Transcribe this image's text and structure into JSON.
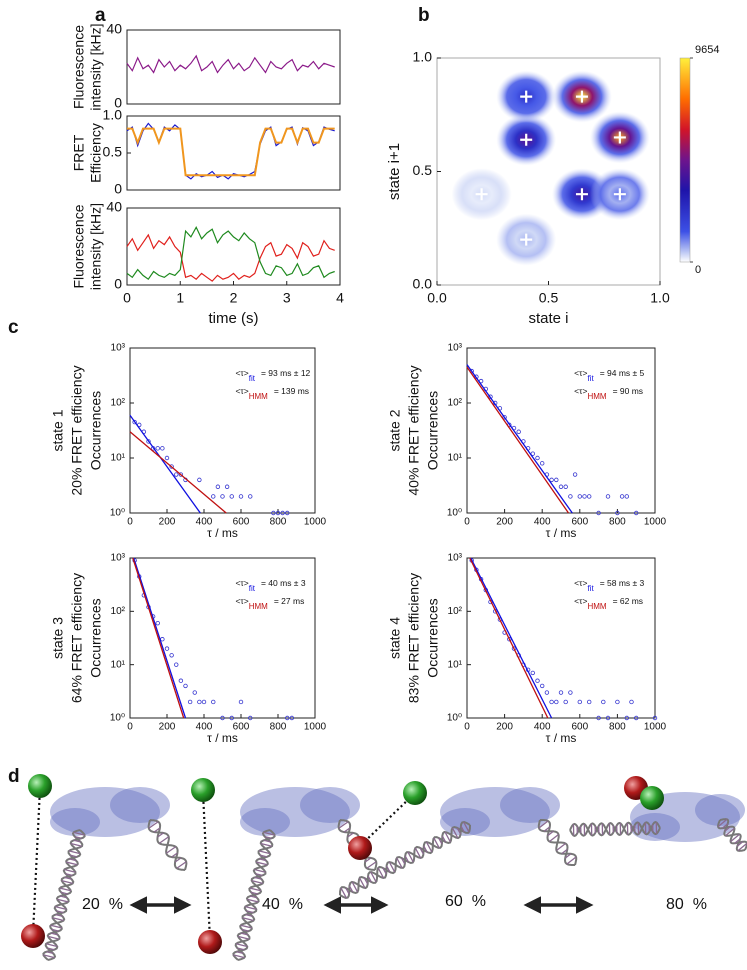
{
  "panels": [
    "a",
    "b",
    "c",
    "d"
  ],
  "chart_data": [
    {
      "type": "line",
      "ylabel": [
        "Fluorescence",
        "intensity [kHz]"
      ],
      "xlim": [
        0,
        4
      ],
      "ylim": [
        0,
        40
      ],
      "yticks": [
        0,
        40
      ],
      "x": [
        0,
        0.1,
        0.2,
        0.3,
        0.4,
        0.5,
        0.6,
        0.7,
        0.8,
        0.9,
        1.0,
        1.1,
        1.2,
        1.3,
        1.4,
        1.5,
        1.6,
        1.7,
        1.8,
        1.9,
        2.0,
        2.1,
        2.2,
        2.3,
        2.4,
        2.5,
        2.6,
        2.7,
        2.8,
        2.9,
        3.0,
        3.1,
        3.2,
        3.3,
        3.4,
        3.5,
        3.6,
        3.7,
        3.8,
        3.9
      ],
      "series": [
        {
          "color": "#8b1a89",
          "values": [
            22,
            18,
            25,
            19,
            21,
            17,
            24,
            20,
            23,
            18,
            21,
            19,
            22,
            26,
            18,
            20,
            23,
            17,
            21,
            24,
            19,
            22,
            18,
            20,
            25,
            21,
            17,
            23,
            20,
            19,
            22,
            24,
            18,
            21,
            20,
            23,
            19,
            22,
            21,
            20
          ]
        }
      ]
    },
    {
      "type": "line",
      "ylabel": [
        "FRET",
        "Efficiency"
      ],
      "xlim": [
        0,
        4
      ],
      "ylim": [
        0,
        1
      ],
      "yticks": [
        0,
        0.5,
        {
          "value": 1,
          "label": "1.0"
        }
      ],
      "x": [
        0,
        0.1,
        0.2,
        0.3,
        0.4,
        0.5,
        0.6,
        0.7,
        0.8,
        0.9,
        1.0,
        1.1,
        1.2,
        1.3,
        1.4,
        1.5,
        1.6,
        1.7,
        1.8,
        1.9,
        2.0,
        2.1,
        2.2,
        2.3,
        2.4,
        2.5,
        2.6,
        2.7,
        2.8,
        2.9,
        3.0,
        3.1,
        3.2,
        3.3,
        3.4,
        3.5,
        3.6,
        3.7,
        3.8,
        3.9
      ],
      "series": [
        {
          "color": "#1a1ad0",
          "values": [
            0.8,
            0.85,
            0.6,
            0.8,
            0.9,
            0.82,
            0.65,
            0.85,
            0.8,
            0.88,
            0.82,
            0.2,
            0.15,
            0.22,
            0.18,
            0.2,
            0.25,
            0.17,
            0.2,
            0.15,
            0.22,
            0.2,
            0.18,
            0.21,
            0.25,
            0.62,
            0.8,
            0.85,
            0.6,
            0.65,
            0.82,
            0.85,
            0.62,
            0.84,
            0.8,
            0.6,
            0.65,
            0.85,
            0.82,
            0.8
          ]
        },
        {
          "color": "#f0961e",
          "values": [
            0.83,
            0.83,
            0.64,
            0.83,
            0.83,
            0.83,
            0.64,
            0.83,
            0.83,
            0.83,
            0.83,
            0.2,
            0.2,
            0.2,
            0.2,
            0.2,
            0.2,
            0.2,
            0.2,
            0.2,
            0.2,
            0.2,
            0.2,
            0.2,
            0.2,
            0.64,
            0.83,
            0.83,
            0.64,
            0.64,
            0.83,
            0.83,
            0.64,
            0.83,
            0.83,
            0.64,
            0.64,
            0.83,
            0.83,
            0.83
          ]
        }
      ]
    },
    {
      "type": "line",
      "ylabel": [
        "Fluorescence",
        "intensity [kHz]"
      ],
      "xlabel": "time (s)",
      "xlim": [
        0,
        4
      ],
      "ylim": [
        0,
        40
      ],
      "yticks": [
        0,
        40
      ],
      "xticks": [
        0,
        1,
        2,
        3,
        4
      ],
      "x": [
        0,
        0.1,
        0.2,
        0.3,
        0.4,
        0.5,
        0.6,
        0.7,
        0.8,
        0.9,
        1.0,
        1.1,
        1.2,
        1.3,
        1.4,
        1.5,
        1.6,
        1.7,
        1.8,
        1.9,
        2.0,
        2.1,
        2.2,
        2.3,
        2.4,
        2.5,
        2.6,
        2.7,
        2.8,
        2.9,
        3.0,
        3.1,
        3.2,
        3.3,
        3.4,
        3.5,
        3.6,
        3.7,
        3.8,
        3.9
      ],
      "series": [
        {
          "color": "#e0201c",
          "values": [
            20,
            24,
            18,
            22,
            26,
            19,
            23,
            21,
            25,
            20,
            17,
            4,
            5,
            3,
            6,
            4,
            2,
            5,
            3,
            4,
            6,
            3,
            5,
            4,
            6,
            14,
            20,
            22,
            15,
            16,
            21,
            19,
            14,
            22,
            20,
            15,
            16,
            23,
            19,
            18
          ]
        },
        {
          "color": "#1f8a1f",
          "values": [
            6,
            4,
            8,
            5,
            3,
            7,
            5,
            4,
            6,
            5,
            8,
            28,
            25,
            30,
            24,
            27,
            29,
            22,
            26,
            28,
            25,
            23,
            27,
            24,
            22,
            12,
            6,
            5,
            10,
            9,
            5,
            6,
            11,
            5,
            6,
            9,
            10,
            4,
            6,
            7
          ]
        }
      ]
    },
    {
      "type": "heatmap",
      "xlabel": "state i",
      "ylabel": "state i+1",
      "xlim": [
        0,
        1
      ],
      "ylim": [
        0,
        1
      ],
      "xticks": [
        {
          "value": 0,
          "label": "0.0"
        },
        0.5,
        {
          "value": 1,
          "label": "1.0"
        }
      ],
      "yticks": [
        {
          "value": 0,
          "label": "0.0"
        },
        0.5,
        {
          "value": 1,
          "label": "1.0"
        }
      ],
      "clim": [
        0,
        9654
      ],
      "cticks": [
        0,
        9654
      ],
      "blobs": [
        {
          "x": 0.65,
          "y": 0.83,
          "v": 9654
        },
        {
          "x": 0.82,
          "y": 0.65,
          "v": 8500
        },
        {
          "x": 0.4,
          "y": 0.64,
          "v": 4500
        },
        {
          "x": 0.65,
          "y": 0.4,
          "v": 4000
        },
        {
          "x": 0.4,
          "y": 0.83,
          "v": 2500
        },
        {
          "x": 0.82,
          "y": 0.4,
          "v": 1200
        },
        {
          "x": 0.2,
          "y": 0.4,
          "v": 300
        },
        {
          "x": 0.4,
          "y": 0.2,
          "v": 600
        }
      ],
      "states": {
        "x": [
          0.4,
          0.65,
          0.4,
          0.82,
          0.2,
          0.65,
          0.82,
          0.4
        ],
        "y": [
          0.83,
          0.83,
          0.64,
          0.65,
          0.4,
          0.4,
          0.4,
          0.2
        ]
      }
    },
    {
      "type": "scatter",
      "yscale": "log",
      "ylabel": [
        "state 1",
        "20% FRET efficiency",
        "Occurrences"
      ],
      "xlabel": "τ / ms",
      "xlim": [
        0,
        1000
      ],
      "ylim": [
        1,
        1000
      ],
      "xticks": [
        0,
        200,
        400,
        600,
        800,
        1000
      ],
      "yticks": [
        {
          "value": 1,
          "label": "10⁰"
        },
        {
          "value": 10,
          "label": "10¹"
        },
        {
          "value": 100,
          "label": "10²"
        },
        {
          "value": 1000,
          "label": "10³"
        }
      ],
      "points": {
        "color": "#3535d0",
        "x": [
          25,
          50,
          75,
          100,
          125,
          150,
          175,
          200,
          225,
          250,
          275,
          300,
          375,
          450,
          475,
          500,
          525,
          550,
          600,
          650,
          775,
          800,
          825,
          850
        ],
        "values": [
          45,
          40,
          30,
          20,
          15,
          15,
          15,
          10,
          7,
          5,
          5,
          4,
          4,
          2,
          3,
          2,
          3,
          2,
          2,
          2,
          1,
          1,
          1,
          1
        ]
      },
      "lines": [
        {
          "color": "#1010e0",
          "x": [
            0,
            380
          ],
          "values": [
            60,
            1
          ]
        },
        {
          "color": "#c01010",
          "x": [
            0,
            520
          ],
          "values": [
            30,
            1
          ]
        }
      ],
      "annotations": [
        {
          "label": "<τ>",
          "sub": "fit",
          "text": "= 93 ms ± 12",
          "color": "#1010e0"
        },
        {
          "label": "<τ>",
          "sub": "HMM",
          "text": "= 139 ms",
          "color": "#c01010"
        }
      ]
    },
    {
      "type": "scatter",
      "yscale": "log",
      "ylabel": [
        "state 2",
        "40% FRET efficiency",
        "Occurrences"
      ],
      "xlabel": "τ / ms",
      "xlim": [
        0,
        1000
      ],
      "ylim": [
        1,
        1000
      ],
      "xticks": [
        0,
        200,
        400,
        600,
        800,
        1000
      ],
      "yticks": [
        {
          "value": 1,
          "label": "10⁰"
        },
        {
          "value": 10,
          "label": "10¹"
        },
        {
          "value": 100,
          "label": "10²"
        },
        {
          "value": 1000,
          "label": "10³"
        }
      ],
      "points": {
        "color": "#3535d0",
        "x": [
          25,
          50,
          75,
          100,
          125,
          150,
          175,
          200,
          225,
          250,
          275,
          300,
          325,
          350,
          375,
          400,
          425,
          450,
          475,
          500,
          525,
          550,
          575,
          600,
          625,
          650,
          700,
          750,
          800,
          825,
          850,
          900
        ],
        "values": [
          380,
          300,
          250,
          180,
          130,
          100,
          80,
          55,
          40,
          35,
          30,
          20,
          15,
          12,
          10,
          8,
          5,
          4,
          4,
          3,
          3,
          2,
          5,
          2,
          2,
          2,
          1,
          2,
          1,
          2,
          2,
          1
        ]
      },
      "lines": [
        {
          "color": "#1010e0",
          "x": [
            0,
            560
          ],
          "values": [
            500,
            1
          ]
        },
        {
          "color": "#c01010",
          "x": [
            0,
            540
          ],
          "values": [
            450,
            1
          ]
        }
      ],
      "annotations": [
        {
          "label": "<τ>",
          "sub": "fit",
          "text": "= 94 ms ± 5",
          "color": "#1010e0"
        },
        {
          "label": "<τ>",
          "sub": "HMM",
          "text": "= 90 ms",
          "color": "#c01010"
        }
      ]
    },
    {
      "type": "scatter",
      "yscale": "log",
      "ylabel": [
        "state 3",
        "64% FRET efficiency",
        "Occurrences"
      ],
      "xlabel": "τ / ms",
      "xlim": [
        0,
        1000
      ],
      "ylim": [
        1,
        1000
      ],
      "xticks": [
        0,
        200,
        400,
        600,
        800,
        1000
      ],
      "yticks": [
        {
          "value": 1,
          "label": "10⁰"
        },
        {
          "value": 10,
          "label": "10¹"
        },
        {
          "value": 100,
          "label": "10²"
        },
        {
          "value": 1000,
          "label": "10³"
        }
      ],
      "points": {
        "color": "#3535d0",
        "x": [
          25,
          50,
          75,
          100,
          125,
          150,
          175,
          200,
          225,
          250,
          275,
          300,
          325,
          350,
          375,
          400,
          450,
          500,
          550,
          600,
          650,
          850,
          875
        ],
        "values": [
          900,
          450,
          200,
          120,
          80,
          60,
          30,
          20,
          15,
          10,
          5,
          4,
          2,
          3,
          2,
          2,
          2,
          1,
          1,
          2,
          1,
          1,
          1
        ]
      },
      "lines": [
        {
          "color": "#1010e0",
          "x": [
            20,
            300
          ],
          "values": [
            1000,
            1
          ]
        },
        {
          "color": "#c01010",
          "x": [
            15,
            290
          ],
          "values": [
            1000,
            1
          ]
        }
      ],
      "annotations": [
        {
          "label": "<τ>",
          "sub": "fit",
          "text": "= 40 ms ± 3",
          "color": "#1010e0"
        },
        {
          "label": "<τ>",
          "sub": "HMM",
          "text": "= 27 ms",
          "color": "#c01010"
        }
      ]
    },
    {
      "type": "scatter",
      "yscale": "log",
      "ylabel": [
        "state 4",
        "83% FRET efficiency",
        "Occurrences"
      ],
      "xlabel": "τ / ms",
      "xlim": [
        0,
        1000
      ],
      "ylim": [
        1,
        1000
      ],
      "xticks": [
        0,
        200,
        400,
        600,
        800,
        1000
      ],
      "yticks": [
        {
          "value": 1,
          "label": "10⁰"
        },
        {
          "value": 10,
          "label": "10¹"
        },
        {
          "value": 100,
          "label": "10²"
        },
        {
          "value": 1000,
          "label": "10³"
        }
      ],
      "points": {
        "color": "#3535d0",
        "x": [
          25,
          50,
          75,
          100,
          125,
          150,
          175,
          200,
          225,
          250,
          275,
          300,
          325,
          350,
          375,
          400,
          425,
          450,
          475,
          500,
          525,
          550,
          600,
          650,
          700,
          725,
          750,
          800,
          850,
          875,
          900,
          1000
        ],
        "values": [
          900,
          600,
          400,
          250,
          150,
          100,
          70,
          40,
          30,
          20,
          15,
          10,
          8,
          7,
          5,
          4,
          3,
          2,
          2,
          3,
          2,
          3,
          2,
          2,
          1,
          2,
          1,
          2,
          1,
          2,
          1,
          1
        ]
      },
      "lines": [
        {
          "color": "#1010e0",
          "x": [
            20,
            450
          ],
          "values": [
            1000,
            1
          ]
        },
        {
          "color": "#c01010",
          "x": [
            15,
            430
          ],
          "values": [
            1000,
            1
          ]
        }
      ],
      "annotations": [
        {
          "label": "<τ>",
          "sub": "fit",
          "text": "= 58 ms ± 3",
          "color": "#1010e0"
        },
        {
          "label": "<τ>",
          "sub": "HMM",
          "text": "= 62 ms",
          "color": "#c01010"
        }
      ]
    }
  ],
  "states_diagram": {
    "labels": [
      "20  %",
      "40  %",
      "60  %",
      "80  %"
    ]
  }
}
